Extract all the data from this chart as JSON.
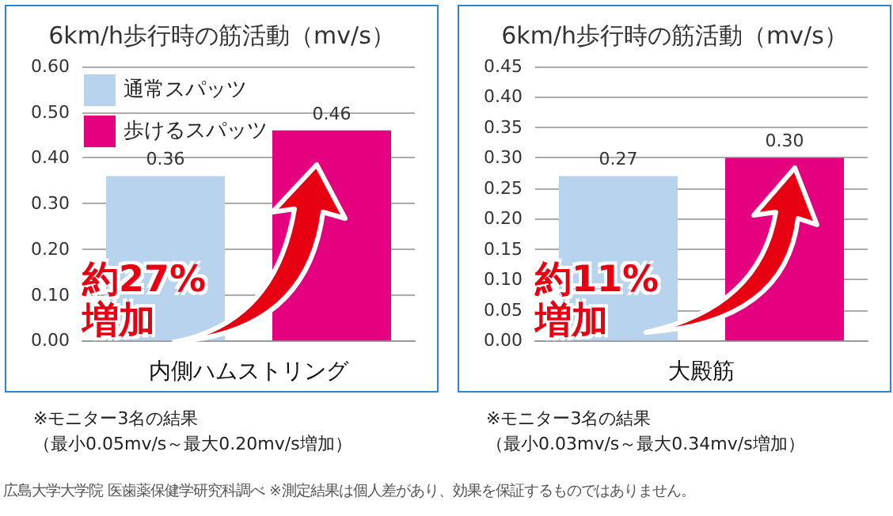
{
  "chart_data": [
    {
      "type": "bar",
      "title": "6km/h歩行時の筋活動（mv/s）",
      "xlabel": "内側ハムストリング",
      "categories": [
        null,
        null
      ],
      "series": [
        {
          "name": "通常スパッツ",
          "color": "#b8d3ee",
          "values": [
            0.36,
            null
          ],
          "value_labels": [
            "0.36",
            null
          ]
        },
        {
          "name": "歩けるスパッツ",
          "color": "#e4007f",
          "values": [
            null,
            0.46
          ],
          "value_labels": [
            null,
            "0.46"
          ]
        }
      ],
      "ylim": [
        0,
        0.6
      ],
      "yticks": [
        {
          "value": 0,
          "label": "0.00"
        },
        {
          "value": 0.1,
          "label": "0.10"
        },
        {
          "value": 0.2,
          "label": "0.20"
        },
        {
          "value": 0.3,
          "label": "0.30"
        },
        {
          "value": 0.4,
          "label": "0.40"
        },
        {
          "value": 0.5,
          "label": "0.50"
        },
        {
          "value": 0.6,
          "label": "0.60"
        }
      ],
      "grid": "y",
      "legend": "top left",
      "annotations": [
        "約27%\n増加",
        "※モニター3名の結果",
        "（最小0.05mv/s～最大0.20mv/s増加）",
        "広島大学大学院 医歯薬保健学研究科調べ ※測定結果は個人差があり、効果を保証するものではありません。"
      ]
    },
    {
      "type": "bar",
      "title": "6km/h歩行時の筋活動（mv/s）",
      "xlabel": "大殿筋",
      "categories": [
        null,
        null
      ],
      "series": [
        {
          "color": "#b8d3ee",
          "values": [
            0.27,
            null
          ],
          "value_labels": [
            "0.27",
            null
          ]
        },
        {
          "color": "#e4007f",
          "values": [
            null,
            0.3
          ],
          "value_labels": [
            null,
            "0.30"
          ]
        }
      ],
      "ylim": [
        0,
        0.45
      ],
      "yticks": [
        {
          "value": 0,
          "label": "0.00"
        },
        {
          "value": 0.05,
          "label": "0.05"
        },
        {
          "value": 0.1,
          "label": "0.10"
        },
        {
          "value": 0.15,
          "label": "0.15"
        },
        {
          "value": 0.2,
          "label": "0.20"
        },
        {
          "value": 0.25,
          "label": "0.25"
        },
        {
          "value": 0.3,
          "label": "0.30"
        },
        {
          "value": 0.35,
          "label": "0.35"
        },
        {
          "value": 0.4,
          "label": "0.40"
        },
        {
          "value": 0.45,
          "label": "0.45"
        }
      ],
      "grid": "y",
      "annotations": [
        "約11%\n増加",
        "※モニター3名の結果",
        "（最小0.03mv/s～最大0.34mv/s増加）"
      ]
    }
  ]
}
